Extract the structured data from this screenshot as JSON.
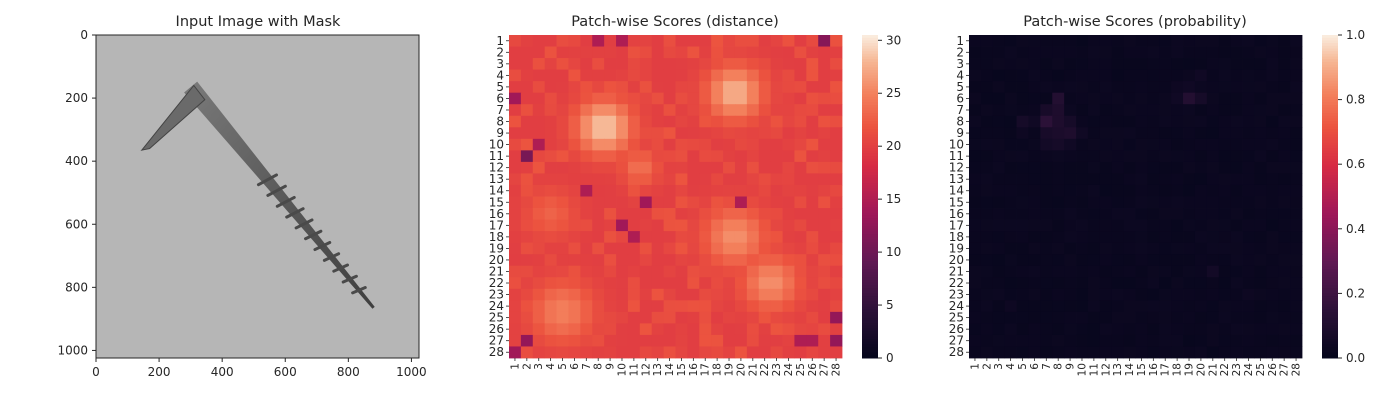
{
  "chart_data": [
    {
      "type": "image",
      "title": "Input Image with Mask",
      "xlim": [
        0,
        1024
      ],
      "ylim": [
        1024,
        0
      ],
      "x_ticks": [
        0,
        200,
        400,
        600,
        800,
        1000
      ],
      "y_ticks": [
        0,
        200,
        400,
        600,
        800,
        1000
      ],
      "subject": "screw",
      "screw_path": [
        {
          "x": 300,
          "y": 165
        },
        {
          "x": 880,
          "y": 865
        }
      ],
      "screw_head": [
        {
          "x": 145,
          "y": 365
        },
        {
          "x": 310,
          "y": 160
        },
        {
          "x": 345,
          "y": 205
        },
        {
          "x": 170,
          "y": 360
        }
      ],
      "background_color": "#b6b6b6",
      "screw_color": "#5a5a5a"
    },
    {
      "type": "heatmap",
      "title": "Patch-wise Scores (distance)",
      "x_labels": [
        "1",
        "2",
        "3",
        "4",
        "5",
        "6",
        "7",
        "8",
        "9",
        "10",
        "11",
        "12",
        "13",
        "14",
        "15",
        "16",
        "17",
        "18",
        "19",
        "20",
        "21",
        "22",
        "23",
        "24",
        "25",
        "26",
        "27",
        "28"
      ],
      "y_labels": [
        "1",
        "2",
        "3",
        "4",
        "5",
        "6",
        "7",
        "8",
        "9",
        "10",
        "11",
        "12",
        "13",
        "14",
        "15",
        "16",
        "17",
        "18",
        "19",
        "20",
        "21",
        "22",
        "23",
        "24",
        "25",
        "26",
        "27",
        "28"
      ],
      "colorbar": {
        "min": 0,
        "max": 30.5,
        "ticks": [
          0,
          5,
          10,
          15,
          20,
          25,
          30
        ]
      },
      "colormap": "rocket",
      "base_value": 20,
      "hotspots": [
        {
          "x": 8.5,
          "y": 8.5,
          "value": 29,
          "radius": 2.2
        },
        {
          "x": 19.5,
          "y": 5.5,
          "value": 28,
          "radius": 2.2
        },
        {
          "x": 19.5,
          "y": 18,
          "value": 26,
          "radius": 2.4
        },
        {
          "x": 22.5,
          "y": 22,
          "value": 26,
          "radius": 2.2
        },
        {
          "x": 5,
          "y": 24.5,
          "value": 25,
          "radius": 2.5
        },
        {
          "x": 11.5,
          "y": 12,
          "value": 24,
          "radius": 1.5
        },
        {
          "x": 4,
          "y": 16,
          "value": 23,
          "radius": 2
        }
      ],
      "low_cells": [
        {
          "x": 1,
          "y": 6,
          "value": 14
        },
        {
          "x": 2,
          "y": 11,
          "value": 11
        },
        {
          "x": 1,
          "y": 28,
          "value": 14
        },
        {
          "x": 10,
          "y": 1,
          "value": 15
        },
        {
          "x": 27,
          "y": 1,
          "value": 12
        },
        {
          "x": 28,
          "y": 25,
          "value": 13
        },
        {
          "x": 28,
          "y": 27,
          "value": 13
        },
        {
          "x": 12,
          "y": 15,
          "value": 14
        },
        {
          "x": 11,
          "y": 18,
          "value": 15
        },
        {
          "x": 10,
          "y": 17,
          "value": 14
        },
        {
          "x": 7,
          "y": 14,
          "value": 15
        },
        {
          "x": 3,
          "y": 10,
          "value": 15
        },
        {
          "x": 25,
          "y": 27,
          "value": 15
        },
        {
          "x": 26,
          "y": 27,
          "value": 15
        },
        {
          "x": 2,
          "y": 27,
          "value": 13
        },
        {
          "x": 20,
          "y": 15,
          "value": 15
        },
        {
          "x": 8,
          "y": 1,
          "value": 15
        }
      ]
    },
    {
      "type": "heatmap",
      "title": "Patch-wise Scores (probability)",
      "x_labels": [
        "1",
        "2",
        "3",
        "4",
        "5",
        "6",
        "7",
        "8",
        "9",
        "10",
        "11",
        "12",
        "13",
        "14",
        "15",
        "16",
        "17",
        "18",
        "19",
        "20",
        "21",
        "22",
        "23",
        "24",
        "25",
        "26",
        "27",
        "28"
      ],
      "y_labels": [
        "1",
        "2",
        "3",
        "4",
        "5",
        "6",
        "7",
        "8",
        "9",
        "10",
        "11",
        "12",
        "13",
        "14",
        "15",
        "16",
        "17",
        "18",
        "19",
        "20",
        "21",
        "22",
        "23",
        "24",
        "25",
        "26",
        "27",
        "28"
      ],
      "colorbar": {
        "min": 0,
        "max": 1,
        "ticks": [
          "0.0",
          "0.2",
          "0.4",
          "0.6",
          "0.8",
          "1.0"
        ]
      },
      "colormap": "rocket",
      "base_value": 0.02,
      "cells": [
        {
          "x": 8,
          "y": 6,
          "value": 0.12
        },
        {
          "x": 7,
          "y": 7,
          "value": 0.08
        },
        {
          "x": 8,
          "y": 7,
          "value": 0.1
        },
        {
          "x": 7,
          "y": 8,
          "value": 0.15
        },
        {
          "x": 8,
          "y": 8,
          "value": 0.1
        },
        {
          "x": 9,
          "y": 8,
          "value": 0.07
        },
        {
          "x": 5,
          "y": 8,
          "value": 0.07
        },
        {
          "x": 6,
          "y": 8,
          "value": 0.05
        },
        {
          "x": 7,
          "y": 9,
          "value": 0.08
        },
        {
          "x": 8,
          "y": 9,
          "value": 0.09
        },
        {
          "x": 9,
          "y": 9,
          "value": 0.1
        },
        {
          "x": 10,
          "y": 9,
          "value": 0.05
        },
        {
          "x": 7,
          "y": 10,
          "value": 0.06
        },
        {
          "x": 8,
          "y": 10,
          "value": 0.07
        },
        {
          "x": 9,
          "y": 10,
          "value": 0.05
        },
        {
          "x": 5,
          "y": 9,
          "value": 0.04
        },
        {
          "x": 19,
          "y": 5,
          "value": 0.05
        },
        {
          "x": 20,
          "y": 4,
          "value": 0.05
        },
        {
          "x": 19,
          "y": 6,
          "value": 0.12
        },
        {
          "x": 20,
          "y": 6,
          "value": 0.07
        },
        {
          "x": 18,
          "y": 6,
          "value": 0.05
        },
        {
          "x": 18,
          "y": 5,
          "value": 0.04
        },
        {
          "x": 21,
          "y": 21,
          "value": 0.06
        },
        {
          "x": 24,
          "y": 23,
          "value": 0.04
        },
        {
          "x": 4,
          "y": 24,
          "value": 0.04
        }
      ]
    }
  ]
}
